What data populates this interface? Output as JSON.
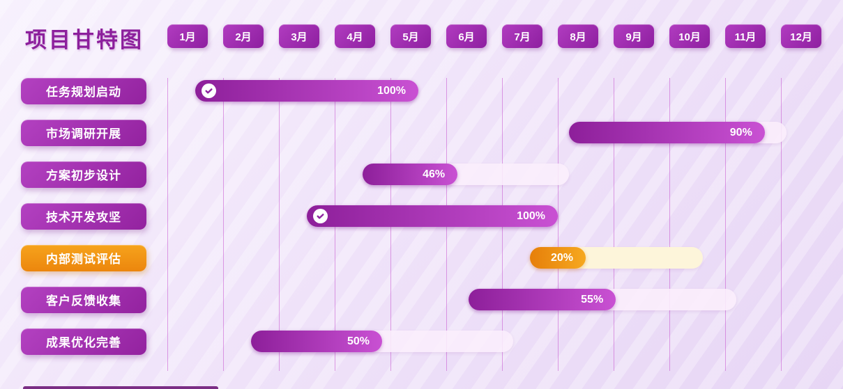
{
  "title": "项目甘特图",
  "months": [
    "1月",
    "2月",
    "3月",
    "4月",
    "5月",
    "6月",
    "7月",
    "8月",
    "9月",
    "10月",
    "11月",
    "12月"
  ],
  "icons": {
    "check": "check-circle"
  },
  "colors": {
    "title": "#8c1f9c",
    "month_button_gradient": [
      "#b13cc0",
      "#8e1fa0"
    ],
    "task_button_purple_gradient": [
      "#b341c1",
      "#93229f"
    ],
    "task_button_orange_gradient": [
      "#f6a31c",
      "#ec860d"
    ],
    "bar_fill_purple_gradient": [
      "#8d1f9a",
      "#c951d3"
    ],
    "bar_fill_orange_gradient": [
      "#e67f0a",
      "#f6a81f"
    ],
    "bar_track_purple": "#f8eefb",
    "bar_track_orange": "#fdf5da",
    "gridline": "#c653cf",
    "background": [
      "#f7f1fd",
      "#e7d6f5"
    ]
  },
  "chart_data": {
    "type": "gantt",
    "title": "项目甘特图",
    "x_axis": {
      "unit": "month",
      "labels": [
        "1月",
        "2月",
        "3月",
        "4月",
        "5月",
        "6月",
        "7月",
        "8月",
        "9月",
        "10月",
        "11月",
        "12月"
      ],
      "range": [
        1,
        13
      ],
      "grid": true
    },
    "tasks": [
      {
        "label": "任务规划启动",
        "percent": 100,
        "percent_label": "100%",
        "start_month": 1.5,
        "end_month": 5.5,
        "color": "purple",
        "completed_check": true
      },
      {
        "label": "市场调研开展",
        "percent": 90,
        "percent_label": "90%",
        "start_month": 8.2,
        "end_month": 12.1,
        "color": "purple",
        "completed_check": false
      },
      {
        "label": "方案初步设计",
        "percent": 46,
        "percent_label": "46%",
        "start_month": 4.5,
        "end_month": 8.2,
        "color": "purple",
        "completed_check": false
      },
      {
        "label": "技术开发攻坚",
        "percent": 100,
        "percent_label": "100%",
        "start_month": 3.5,
        "end_month": 8.0,
        "color": "purple",
        "completed_check": true
      },
      {
        "label": "内部测试评估",
        "percent": 20,
        "percent_label": "20%",
        "start_month": 7.5,
        "end_month": 10.6,
        "color": "orange",
        "completed_check": false
      },
      {
        "label": "客户反馈收集",
        "percent": 55,
        "percent_label": "55%",
        "start_month": 6.4,
        "end_month": 11.2,
        "color": "purple",
        "completed_check": false
      },
      {
        "label": "成果优化完善",
        "percent": 50,
        "percent_label": "50%",
        "start_month": 2.5,
        "end_month": 7.2,
        "color": "purple",
        "completed_check": false
      }
    ]
  }
}
